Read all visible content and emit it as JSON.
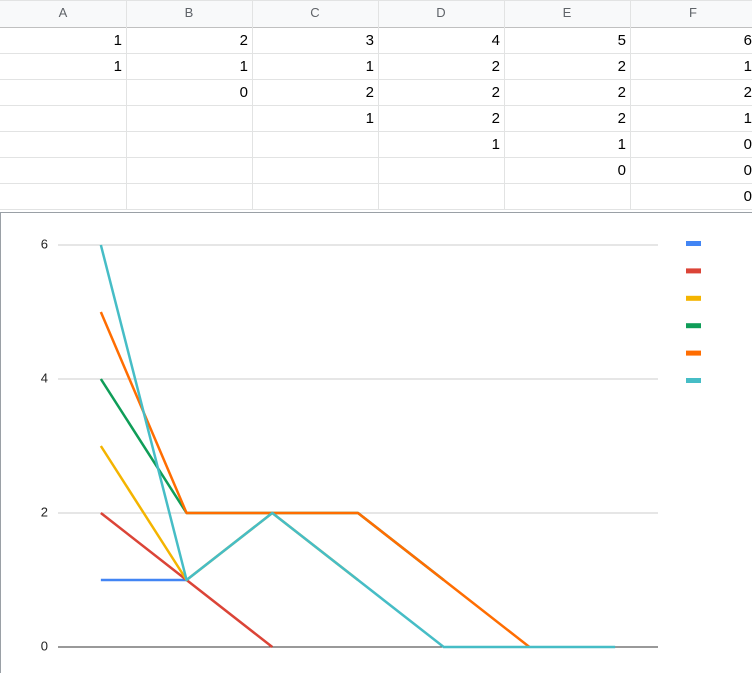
{
  "sheet": {
    "columns": [
      "A",
      "B",
      "C",
      "D",
      "E",
      "F"
    ],
    "rows": [
      [
        1,
        2,
        3,
        4,
        5,
        6
      ],
      [
        1,
        1,
        1,
        2,
        2,
        1
      ],
      [
        null,
        0,
        2,
        2,
        2,
        2
      ],
      [
        null,
        null,
        1,
        2,
        2,
        1
      ],
      [
        null,
        null,
        null,
        1,
        1,
        0
      ],
      [
        null,
        null,
        null,
        null,
        0,
        0
      ],
      [
        null,
        null,
        null,
        null,
        null,
        0
      ]
    ]
  },
  "chart_data": {
    "type": "line",
    "categories": [
      null,
      null,
      null,
      null,
      null,
      null,
      null
    ],
    "series": [
      {
        "color": "#4285f4",
        "values": [
          1,
          1,
          null,
          null,
          null,
          null,
          null
        ]
      },
      {
        "color": "#db4437",
        "values": [
          2,
          1,
          0,
          null,
          null,
          null,
          null
        ]
      },
      {
        "color": "#f4b400",
        "values": [
          3,
          1,
          2,
          1,
          null,
          null,
          null
        ]
      },
      {
        "color": "#0f9d58",
        "values": [
          4,
          2,
          2,
          2,
          1,
          null,
          null
        ]
      },
      {
        "color": "#ff6d01",
        "values": [
          5,
          2,
          2,
          2,
          1,
          0,
          null
        ]
      },
      {
        "color": "#46bdc6",
        "values": [
          6,
          1,
          2,
          1,
          0,
          0,
          0
        ]
      }
    ],
    "ylim": [
      0,
      6
    ],
    "yticks": [
      0,
      2,
      4,
      6
    ],
    "grid": true,
    "legend": "right"
  }
}
